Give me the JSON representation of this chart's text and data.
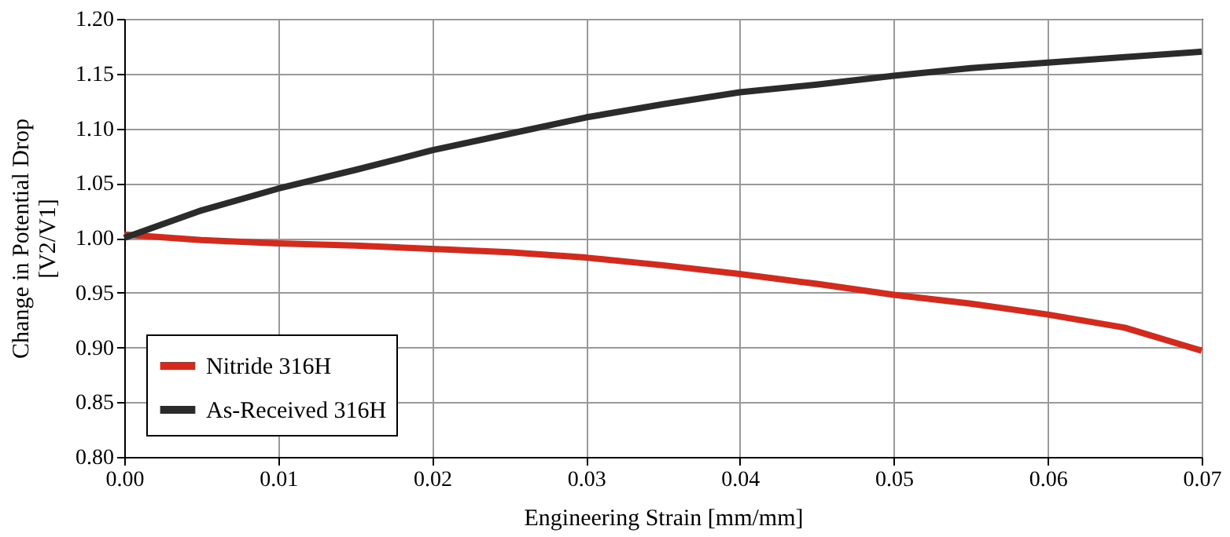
{
  "chart_data": {
    "type": "line",
    "xlabel": "Engineering Strain [mm/mm]",
    "ylabel": "Change in Potential Drop\n[V2/V1]",
    "x": [
      0,
      0.005,
      0.01,
      0.015,
      0.02,
      0.025,
      0.03,
      0.035,
      0.04,
      0.045,
      0.05,
      0.055,
      0.06,
      0.065,
      0.07
    ],
    "series": [
      {
        "name": "Nitride 316H",
        "color": "#d42a1e",
        "values": [
          1.003,
          0.998,
          0.995,
          0.993,
          0.99,
          0.987,
          0.982,
          0.975,
          0.967,
          0.958,
          0.948,
          0.94,
          0.93,
          0.918,
          0.897
        ]
      },
      {
        "name": "As-Received 316H",
        "color": "#2b2b2b",
        "values": [
          1.0,
          1.025,
          1.045,
          1.062,
          1.08,
          1.095,
          1.11,
          1.122,
          1.133,
          1.14,
          1.148,
          1.155,
          1.16,
          1.165,
          1.17
        ]
      }
    ],
    "xlim": [
      0,
      0.07
    ],
    "xticks": [
      {
        "value": 0,
        "label": "0.00"
      },
      {
        "value": 0.01,
        "label": "0.01"
      },
      {
        "value": 0.02,
        "label": "0.02"
      },
      {
        "value": 0.03,
        "label": "0.03"
      },
      {
        "value": 0.04,
        "label": "0.04"
      },
      {
        "value": 0.05,
        "label": "0.05"
      },
      {
        "value": 0.06,
        "label": "0.06"
      },
      {
        "value": 0.07,
        "label": "0.07"
      }
    ],
    "ylim": [
      0.8,
      1.2
    ],
    "yticks": [
      {
        "value": 0.8,
        "label": "0.80"
      },
      {
        "value": 0.85,
        "label": "0.85"
      },
      {
        "value": 0.9,
        "label": "0.90"
      },
      {
        "value": 0.95,
        "label": "0.95"
      },
      {
        "value": 1.0,
        "label": "1.00"
      },
      {
        "value": 1.05,
        "label": "1.05"
      },
      {
        "value": 1.1,
        "label": "1.10"
      },
      {
        "value": 1.15,
        "label": "1.15"
      },
      {
        "value": 1.2,
        "label": "1.20"
      }
    ],
    "grid": true,
    "legend": "bottom left",
    "marker": "none",
    "line_style": "solid"
  }
}
